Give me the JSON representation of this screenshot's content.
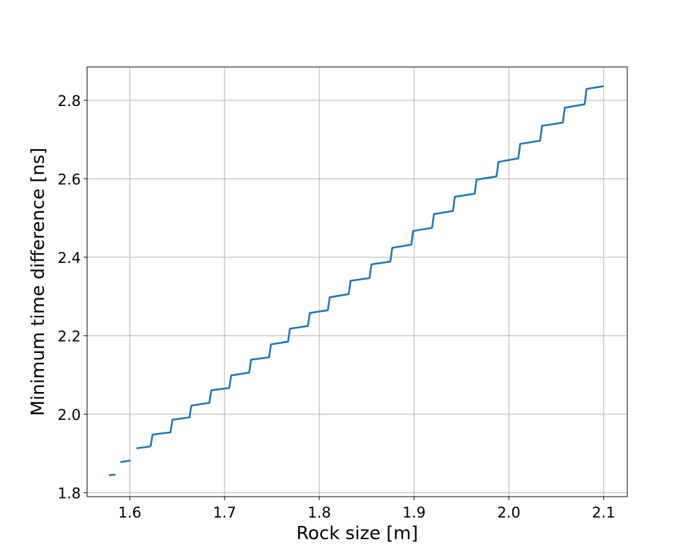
{
  "chart_data": {
    "type": "line",
    "title": "",
    "xlabel": "Rock size [m]",
    "ylabel": "Minimum time difference [ns]",
    "xlim": [
      1.555,
      2.125
    ],
    "ylim": [
      1.79,
      2.885
    ],
    "xticks": [
      1.6,
      1.7,
      1.8,
      1.9,
      2.0,
      2.1
    ],
    "xtick_labels": [
      "1.6",
      "1.7",
      "1.8",
      "1.9",
      "2.0",
      "2.1"
    ],
    "yticks": [
      1.8,
      2.0,
      2.2,
      2.4,
      2.6,
      2.8
    ],
    "ytick_labels": [
      "1.8",
      "2.0",
      "2.2",
      "2.4",
      "2.6",
      "2.8"
    ],
    "grid": true,
    "legend": "none",
    "color": "#1f77b4",
    "series": [
      {
        "segments": [
          [
            [
              1.578,
              1.845
            ],
            [
              1.585,
              1.846
            ]
          ],
          [
            [
              1.59,
              1.878
            ],
            [
              1.601,
              1.882
            ]
          ],
          [
            [
              1.607,
              1.913
            ],
            [
              1.622,
              1.918
            ]
          ],
          [
            [
              1.622,
              1.918
            ],
            [
              1.624,
              1.948
            ],
            [
              1.643,
              1.954
            ],
            [
              1.645,
              1.986
            ],
            [
              1.663,
              1.992
            ],
            [
              1.665,
              2.022
            ],
            [
              1.684,
              2.029
            ],
            [
              1.686,
              2.061
            ],
            [
              1.705,
              2.067
            ],
            [
              1.707,
              2.099
            ],
            [
              1.726,
              2.106
            ],
            [
              1.728,
              2.139
            ],
            [
              1.747,
              2.145
            ],
            [
              1.749,
              2.178
            ],
            [
              1.767,
              2.185
            ],
            [
              1.769,
              2.218
            ],
            [
              1.788,
              2.225
            ],
            [
              1.79,
              2.258
            ],
            [
              1.809,
              2.265
            ],
            [
              1.811,
              2.298
            ],
            [
              1.831,
              2.306
            ],
            [
              1.833,
              2.34
            ],
            [
              1.853,
              2.347
            ],
            [
              1.855,
              2.382
            ],
            [
              1.875,
              2.389
            ],
            [
              1.877,
              2.424
            ],
            [
              1.897,
              2.432
            ],
            [
              1.899,
              2.467
            ],
            [
              1.919,
              2.475
            ],
            [
              1.921,
              2.51
            ],
            [
              1.941,
              2.518
            ],
            [
              1.943,
              2.554
            ],
            [
              1.964,
              2.562
            ],
            [
              1.966,
              2.598
            ],
            [
              1.987,
              2.606
            ],
            [
              1.989,
              2.643
            ],
            [
              2.01,
              2.652
            ],
            [
              2.012,
              2.689
            ],
            [
              2.033,
              2.697
            ],
            [
              2.035,
              2.735
            ],
            [
              2.057,
              2.743
            ],
            [
              2.059,
              2.781
            ],
            [
              2.08,
              2.79
            ],
            [
              2.082,
              2.829
            ],
            [
              2.1,
              2.836
            ]
          ]
        ]
      }
    ]
  }
}
